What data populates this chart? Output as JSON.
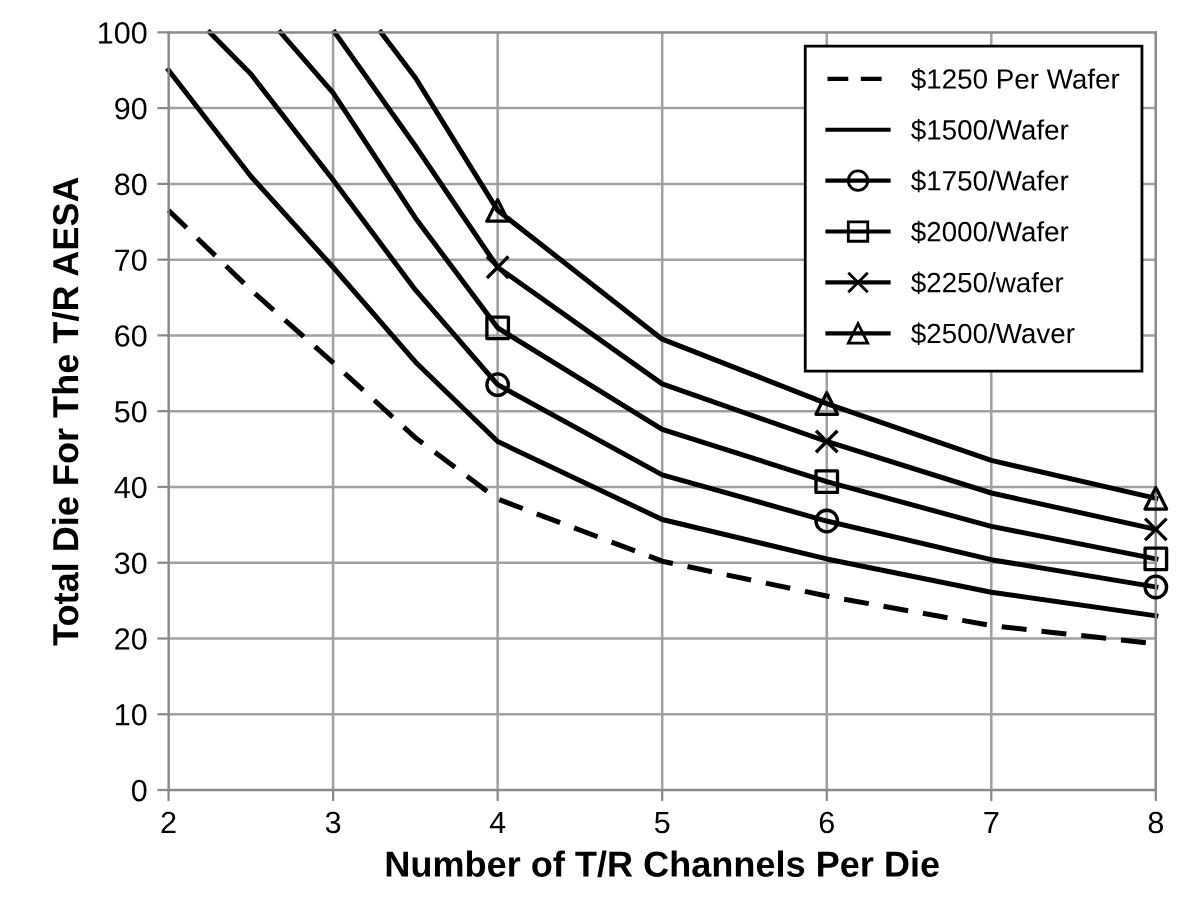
{
  "chart_data": {
    "type": "line",
    "xlabel": "Number of T/R Channels Per Die",
    "ylabel": "Total Die For The T/R AESA",
    "xlim": [
      2,
      8
    ],
    "xticks": [
      2,
      3,
      4,
      5,
      6,
      7,
      8
    ],
    "ylim": [
      0,
      100
    ],
    "yticks": [
      0,
      10,
      20,
      30,
      40,
      50,
      60,
      70,
      80,
      90,
      100
    ],
    "grid": true,
    "legend": "top right",
    "series": [
      {
        "name": "$1250 Per Wafer",
        "color": "#000000",
        "line_style": "dashed",
        "x": [
          2,
          2.5,
          3,
          3.5,
          4,
          5,
          6,
          7,
          8
        ],
        "values": [
          76.5,
          66,
          56.4,
          46.5,
          38.4,
          30.2,
          25.6,
          21.7,
          19.3
        ]
      },
      {
        "name": "$1500/Wafer",
        "color": "#000000",
        "line_style": "solid",
        "x": [
          2,
          2.5,
          3,
          3.5,
          4,
          5,
          6,
          7,
          8
        ],
        "values": [
          95,
          81,
          69,
          56.5,
          46,
          35.7,
          30.5,
          26.1,
          23
        ]
      },
      {
        "name": "$1750/Wafer",
        "color": "#000000",
        "line_style": "solid",
        "x": [
          2.25,
          2.5,
          3,
          3.5,
          4,
          5,
          6,
          7,
          8
        ],
        "values": [
          100,
          94.5,
          80.5,
          66,
          53.5,
          41.6,
          35.5,
          30.4,
          26.8
        ]
      },
      {
        "name": "$2000/Wafer",
        "color": "#000000",
        "line_style": "solid",
        "x": [
          2.68,
          3,
          3.5,
          4,
          5,
          6,
          7,
          8
        ],
        "values": [
          100,
          92,
          75.5,
          61,
          47.6,
          40.7,
          34.8,
          30.5
        ]
      },
      {
        "name": "$2250/wafer",
        "color": "#000000",
        "line_style": "solid",
        "x": [
          3.01,
          3.5,
          4,
          5,
          6,
          7,
          8
        ],
        "values": [
          100,
          85,
          69,
          53.6,
          46,
          39.2,
          34.4
        ]
      },
      {
        "name": "$2500/Waver",
        "color": "#000000",
        "line_style": "solid",
        "x": [
          3.29,
          3.5,
          4,
          5,
          6,
          7,
          8
        ],
        "values": [
          100,
          94,
          76.5,
          59.5,
          51,
          43.5,
          38.5
        ]
      },
      {
        "type": "scatter",
        "color": "#000000",
        "marker": "circle",
        "x": [
          4,
          6,
          8
        ],
        "values": [
          53.5,
          35.5,
          26.8
        ]
      },
      {
        "type": "scatter",
        "color": "#000000",
        "marker": "square",
        "x": [
          4,
          6,
          8
        ],
        "values": [
          61,
          40.7,
          30.5
        ]
      },
      {
        "type": "scatter",
        "color": "#000000",
        "marker": "cross",
        "x": [
          4,
          6,
          8
        ],
        "values": [
          69,
          46,
          34.4
        ]
      },
      {
        "type": "scatter",
        "color": "#000000",
        "marker": "triangle",
        "x": [
          4,
          6,
          8
        ],
        "values": [
          76.5,
          51,
          38.5
        ]
      }
    ]
  }
}
